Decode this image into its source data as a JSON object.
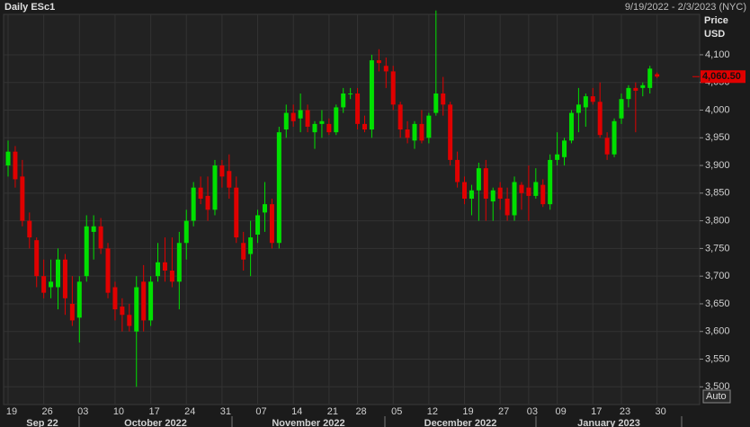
{
  "chart_data": {
    "type": "candlestick",
    "title": "Daily ESc1",
    "subtitle": "9/19/2022 - 2/3/2023 (NYC)",
    "y_label": "Price",
    "y_unit": "USD",
    "scale_mode": "Auto",
    "months": [
      "Sep 22",
      "October 2022",
      "November 2022",
      "December 2022",
      "January 2023"
    ],
    "categories": [
      "19",
      null,
      null,
      null,
      null,
      "26",
      null,
      null,
      null,
      null,
      "03",
      null,
      null,
      null,
      null,
      "10",
      null,
      null,
      null,
      null,
      "17",
      null,
      null,
      null,
      null,
      "24",
      null,
      null,
      null,
      null,
      "31",
      null,
      null,
      null,
      null,
      "07",
      null,
      null,
      null,
      null,
      "14",
      null,
      null,
      null,
      null,
      "21",
      null,
      null,
      null,
      "28",
      null,
      null,
      null,
      null,
      "05",
      null,
      null,
      null,
      null,
      "12",
      null,
      null,
      null,
      null,
      "19",
      null,
      null,
      null,
      null,
      "27",
      null,
      null,
      null,
      "03",
      null,
      null,
      null,
      "09",
      null,
      null,
      null,
      null,
      "17",
      null,
      null,
      null,
      "23",
      null,
      null,
      null,
      null,
      "30"
    ],
    "open": [
      3900,
      3925,
      3880,
      3800,
      3765,
      3700,
      3680,
      3680,
      3730,
      3650,
      3625,
      3700,
      3780,
      3790,
      3750,
      3680,
      3645,
      3630,
      3600,
      3690,
      3620,
      3700,
      3725,
      3710,
      3690,
      3760,
      3800,
      3860,
      3845,
      3820,
      3900,
      3890,
      3860,
      3760,
      3740,
      3775,
      3815,
      3830,
      3760,
      3965,
      3995,
      3985,
      4000,
      3960,
      3975,
      3975,
      3960,
      4005,
      4030,
      4030,
      3975,
      3965,
      4090,
      4080,
      4070,
      4010,
      3965,
      3945,
      3975,
      3950,
      3995,
      4030,
      4010,
      3910,
      3870,
      3840,
      3855,
      3895,
      3835,
      3860,
      3840,
      3810,
      3865,
      3860,
      3845,
      3865,
      3830,
      3910,
      3915,
      3945,
      3995,
      4005,
      4025,
      4015,
      3950,
      3920,
      3985,
      4020,
      4040,
      4040,
      4040,
      4065
    ],
    "high": [
      3945,
      3935,
      3910,
      3815,
      3770,
      3730,
      3730,
      3750,
      3740,
      3700,
      3700,
      3810,
      3810,
      3805,
      3760,
      3690,
      3660,
      3650,
      3700,
      3720,
      3700,
      3760,
      3770,
      3770,
      3780,
      3820,
      3870,
      3880,
      3880,
      3910,
      3910,
      3920,
      3880,
      3780,
      3800,
      3820,
      3870,
      3840,
      3970,
      4010,
      4010,
      4030,
      4010,
      3980,
      4000,
      3985,
      4010,
      4040,
      4040,
      4040,
      3990,
      4100,
      4110,
      4095,
      4080,
      4015,
      3980,
      3980,
      4000,
      3995,
      4180,
      4060,
      4015,
      3925,
      3880,
      3865,
      3905,
      3910,
      3860,
      3870,
      3860,
      3880,
      3870,
      3900,
      3895,
      3875,
      3920,
      3960,
      3950,
      4000,
      4040,
      4030,
      4040,
      4050,
      3960,
      3985,
      4030,
      4045,
      4050,
      4050,
      4080,
      4068
    ],
    "low": [
      3880,
      3860,
      3790,
      3750,
      3680,
      3660,
      3660,
      3640,
      3630,
      3610,
      3580,
      3690,
      3730,
      3740,
      3660,
      3620,
      3600,
      3600,
      3500,
      3600,
      3610,
      3690,
      3690,
      3680,
      3640,
      3730,
      3790,
      3830,
      3800,
      3810,
      3860,
      3840,
      3760,
      3710,
      3700,
      3760,
      3780,
      3750,
      3750,
      3950,
      3970,
      3960,
      3960,
      3930,
      3950,
      3955,
      3955,
      3995,
      4020,
      3965,
      3960,
      3950,
      4070,
      4040,
      4000,
      3950,
      3940,
      3930,
      3940,
      3940,
      3990,
      3990,
      3900,
      3860,
      3830,
      3810,
      3800,
      3800,
      3800,
      3820,
      3800,
      3800,
      3820,
      3800,
      3840,
      3825,
      3820,
      3900,
      3900,
      3940,
      3960,
      3970,
      4010,
      3950,
      3910,
      3915,
      3975,
      4005,
      3960,
      4025,
      4030,
      4058
    ],
    "close": [
      3925,
      3875,
      3800,
      3770,
      3700,
      3670,
      3690,
      3730,
      3660,
      3620,
      3690,
      3790,
      3790,
      3750,
      3670,
      3640,
      3630,
      3610,
      3680,
      3620,
      3690,
      3725,
      3710,
      3690,
      3760,
      3800,
      3860,
      3840,
      3820,
      3900,
      3880,
      3860,
      3770,
      3730,
      3770,
      3810,
      3830,
      3760,
      3960,
      3995,
      3980,
      4000,
      3970,
      3975,
      3980,
      3960,
      4005,
      4030,
      4030,
      3975,
      3965,
      4090,
      4085,
      4070,
      4010,
      3965,
      3950,
      3975,
      3945,
      3990,
      4030,
      4010,
      3910,
      3870,
      3840,
      3855,
      3895,
      3840,
      3855,
      3840,
      3810,
      3870,
      3850,
      3845,
      3870,
      3830,
      3910,
      3920,
      3945,
      3995,
      4010,
      4025,
      4015,
      3955,
      3920,
      3980,
      4020,
      4040,
      4035,
      4045,
      4075,
      4060.5
    ],
    "up_color": "#00e000",
    "down_color": "#e00000",
    "ylim": [
      3468,
      4173
    ],
    "yticks": [
      {
        "value": 3500,
        "label": "3,500"
      },
      {
        "value": 3550,
        "label": "3,550"
      },
      {
        "value": 3600,
        "label": "3,600"
      },
      {
        "value": 3650,
        "label": "3,650"
      },
      {
        "value": 3700,
        "label": "3,700"
      },
      {
        "value": 3750,
        "label": "3,750"
      },
      {
        "value": 3800,
        "label": "3,800"
      },
      {
        "value": 3850,
        "label": "3,850"
      },
      {
        "value": 3900,
        "label": "3,900"
      },
      {
        "value": 3950,
        "label": "3,950"
      },
      {
        "value": 4000,
        "label": "4,000"
      },
      {
        "value": 4050,
        "label": "4,050"
      },
      {
        "value": 4100,
        "label": "4,100"
      }
    ],
    "grid": true,
    "last_price": {
      "value": 4060.5,
      "label": "4,060.50"
    }
  }
}
